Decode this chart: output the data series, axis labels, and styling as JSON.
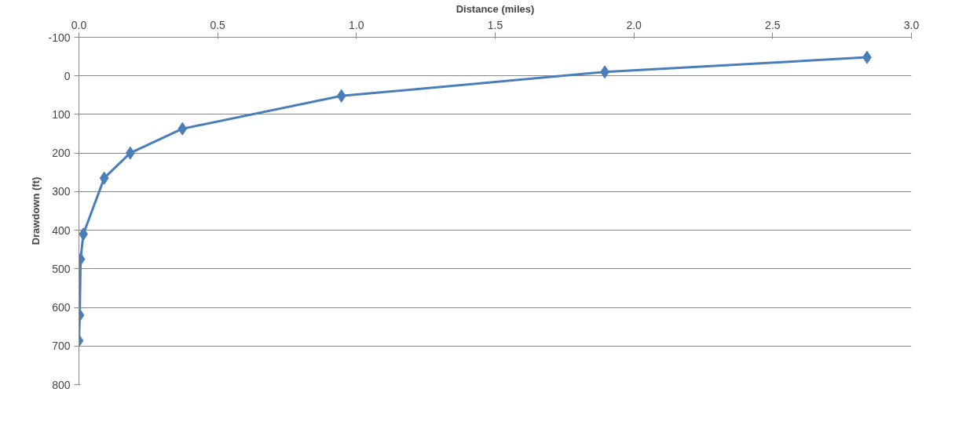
{
  "chart_data": {
    "type": "line",
    "xlabel": "Distance (miles)",
    "ylabel": "Drawdown (ft)",
    "x": [
      0.0,
      0.003,
      0.006,
      0.016,
      0.091,
      0.185,
      0.373,
      0.946,
      1.895,
      2.84
    ],
    "series": [
      {
        "color": "#4a7ebb",
        "values": [
          686,
          620,
          475,
          410,
          265,
          200,
          137,
          52,
          -10,
          -48
        ]
      }
    ],
    "xlim": [
      0,
      3
    ],
    "xticks": [
      {
        "value": 0,
        "label": "0.0"
      },
      0.5,
      {
        "value": 1,
        "label": "1.0"
      },
      1.5,
      {
        "value": 2,
        "label": "2.0"
      },
      2.5,
      {
        "value": 3,
        "label": "3.0"
      }
    ],
    "ylim": [
      800,
      -100
    ],
    "yticks": [
      -100,
      0,
      100,
      200,
      300,
      400,
      500,
      600,
      700,
      800
    ],
    "grid": "y",
    "marker": "diamond",
    "line_style": "solid"
  }
}
